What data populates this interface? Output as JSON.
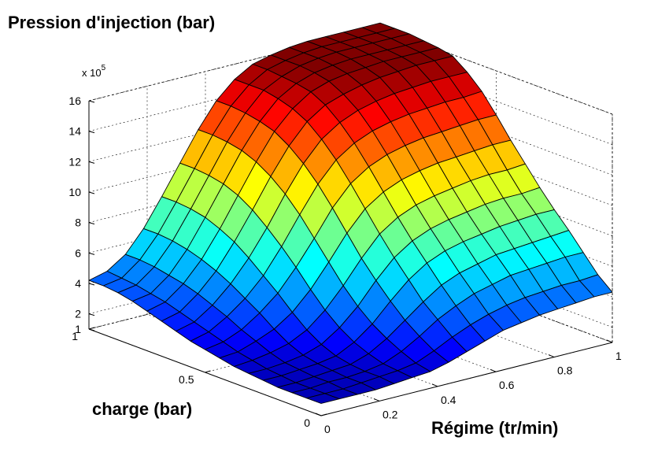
{
  "chart_data": {
    "type": "surface",
    "title": "Pression d'injection (bar)",
    "xlabel": "Régime (tr/min)",
    "ylabel": "charge (bar)",
    "zlabel": "",
    "z_multiplier": "x 10",
    "z_exponent": "5",
    "xlim": [
      0,
      1
    ],
    "ylim": [
      0,
      1
    ],
    "zlim": [
      1,
      16
    ],
    "x_ticks": [
      "0",
      "0.2",
      "0.4",
      "0.6",
      "0.8",
      "1"
    ],
    "y_ticks": [
      "0",
      "0.5",
      "1"
    ],
    "z_ticks": [
      "1",
      "2",
      "4",
      "6",
      "8",
      "10",
      "12",
      "14",
      "16"
    ],
    "grid": true,
    "colormap": "jet",
    "x": [
      0,
      0.0625,
      0.125,
      0.1875,
      0.25,
      0.3125,
      0.375,
      0.4375,
      0.5,
      0.5625,
      0.625,
      0.6875,
      0.75,
      0.8125,
      0.875,
      0.9375,
      1
    ],
    "y": [
      0,
      0.0625,
      0.125,
      0.1875,
      0.25,
      0.3125,
      0.375,
      0.4375,
      0.5,
      0.5625,
      0.625,
      0.6875,
      0.75,
      0.8125,
      0.875,
      0.9375,
      1
    ],
    "z": [
      [
        1.8,
        1.8,
        1.8,
        1.8,
        1.9,
        2.0,
        2.1,
        2.4,
        2.8,
        3.2,
        3.6,
        3.8,
        4.0,
        4.1,
        4.2,
        4.3,
        4.3
      ],
      [
        1.8,
        1.8,
        1.8,
        1.9,
        2.0,
        2.1,
        2.3,
        2.8,
        3.4,
        3.9,
        4.3,
        4.6,
        4.8,
        4.9,
        5.0,
        5.0,
        5.1
      ],
      [
        1.8,
        1.8,
        1.9,
        1.9,
        2.0,
        2.2,
        2.7,
        3.4,
        4.2,
        4.8,
        5.3,
        5.6,
        5.9,
        6.0,
        6.1,
        6.2,
        6.2
      ],
      [
        1.8,
        1.8,
        1.9,
        2.0,
        2.1,
        2.5,
        3.2,
        4.1,
        5.0,
        5.8,
        6.3,
        6.6,
        6.9,
        7.0,
        7.1,
        7.2,
        7.3
      ],
      [
        1.9,
        1.9,
        2.0,
        2.1,
        2.3,
        2.9,
        3.8,
        5.0,
        6.1,
        6.9,
        7.4,
        7.7,
        7.9,
        8.1,
        8.2,
        8.3,
        8.3
      ],
      [
        2.0,
        2.0,
        2.1,
        2.3,
        2.7,
        3.5,
        4.6,
        6.0,
        7.2,
        8.0,
        8.5,
        8.8,
        9.0,
        9.2,
        9.3,
        9.3,
        9.4
      ],
      [
        2.1,
        2.2,
        2.4,
        2.7,
        3.3,
        4.3,
        5.6,
        7.1,
        8.4,
        9.2,
        9.7,
        10.0,
        10.2,
        10.4,
        10.5,
        10.5,
        10.6
      ],
      [
        2.3,
        2.4,
        2.8,
        3.3,
        4.1,
        5.3,
        6.8,
        8.4,
        9.7,
        10.5,
        11.0,
        11.3,
        11.5,
        11.6,
        11.7,
        11.8,
        11.8
      ],
      [
        2.5,
        2.7,
        3.2,
        4.0,
        5.0,
        6.4,
        8.0,
        9.7,
        11.0,
        11.8,
        12.3,
        12.6,
        12.8,
        12.9,
        13.0,
        13.1,
        13.1
      ],
      [
        2.7,
        3.0,
        3.7,
        4.6,
        5.8,
        7.4,
        9.2,
        10.9,
        12.2,
        13.0,
        13.5,
        13.8,
        14.0,
        14.1,
        14.2,
        14.2,
        14.3
      ],
      [
        3.0,
        3.3,
        4.1,
        5.2,
        6.6,
        8.3,
        10.2,
        11.9,
        13.2,
        14.0,
        14.5,
        14.8,
        15.0,
        15.1,
        15.2,
        15.2,
        15.2
      ],
      [
        3.3,
        3.6,
        4.5,
        5.7,
        7.3,
        9.1,
        11.0,
        12.7,
        14.0,
        14.8,
        15.2,
        15.5,
        15.7,
        15.8,
        15.9,
        15.9,
        15.9
      ],
      [
        3.6,
        3.9,
        4.8,
        6.1,
        7.8,
        9.7,
        11.6,
        13.3,
        14.5,
        15.3,
        15.7,
        15.9,
        16.0,
        16.1,
        16.1,
        16.1,
        16.1
      ],
      [
        3.9,
        4.1,
        5.0,
        6.4,
        8.2,
        10.1,
        12.0,
        13.6,
        14.8,
        15.5,
        15.9,
        16.1,
        16.2,
        16.2,
        16.2,
        16.2,
        16.2
      ],
      [
        4.1,
        4.3,
        5.2,
        6.6,
        8.4,
        10.3,
        12.2,
        13.8,
        15.0,
        15.6,
        16.0,
        16.2,
        16.3,
        16.3,
        16.3,
        16.3,
        16.3
      ],
      [
        4.2,
        4.4,
        5.3,
        6.7,
        8.5,
        10.4,
        12.3,
        13.9,
        15.0,
        15.7,
        16.0,
        16.2,
        16.3,
        16.3,
        16.3,
        16.3,
        16.3
      ],
      [
        4.2,
        4.5,
        5.3,
        6.7,
        8.5,
        10.4,
        12.3,
        13.9,
        15.0,
        15.7,
        16.0,
        16.2,
        16.3,
        16.3,
        16.3,
        16.3,
        16.3
      ]
    ]
  }
}
